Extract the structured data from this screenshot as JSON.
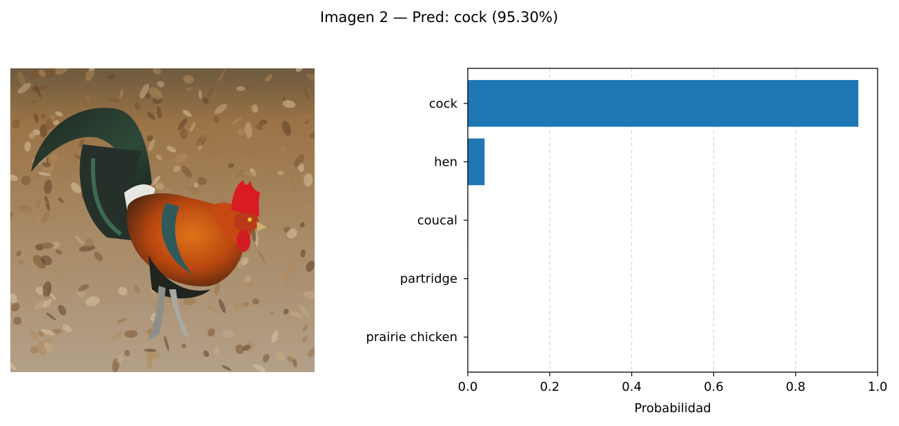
{
  "figure": {
    "title": "Imagen 2 — Pred: cock (95.30%)"
  },
  "photo": {
    "subject": "rooster",
    "colors": {
      "ground": "#a8896a",
      "leaves": "#8a6238",
      "plumage_dark": "#26302a",
      "plumage_green": "#2f4c3a",
      "plumage_orange": "#c85a10",
      "comb": "#d81c22"
    }
  },
  "chart_data": {
    "type": "bar",
    "orientation": "horizontal",
    "categories": [
      "cock",
      "hen",
      "coucal",
      "partridge",
      "prairie chicken"
    ],
    "values": [
      0.953,
      0.041,
      0.001,
      0.0005,
      0.0003
    ],
    "xlabel": "Probabilidad",
    "ylabel": "",
    "xlim": [
      0,
      1.0
    ],
    "xticks": [
      "0.0",
      "0.2",
      "0.4",
      "0.6",
      "0.8",
      "1.0"
    ],
    "grid": "x-dashed",
    "bar_color": "#1f77b4"
  }
}
